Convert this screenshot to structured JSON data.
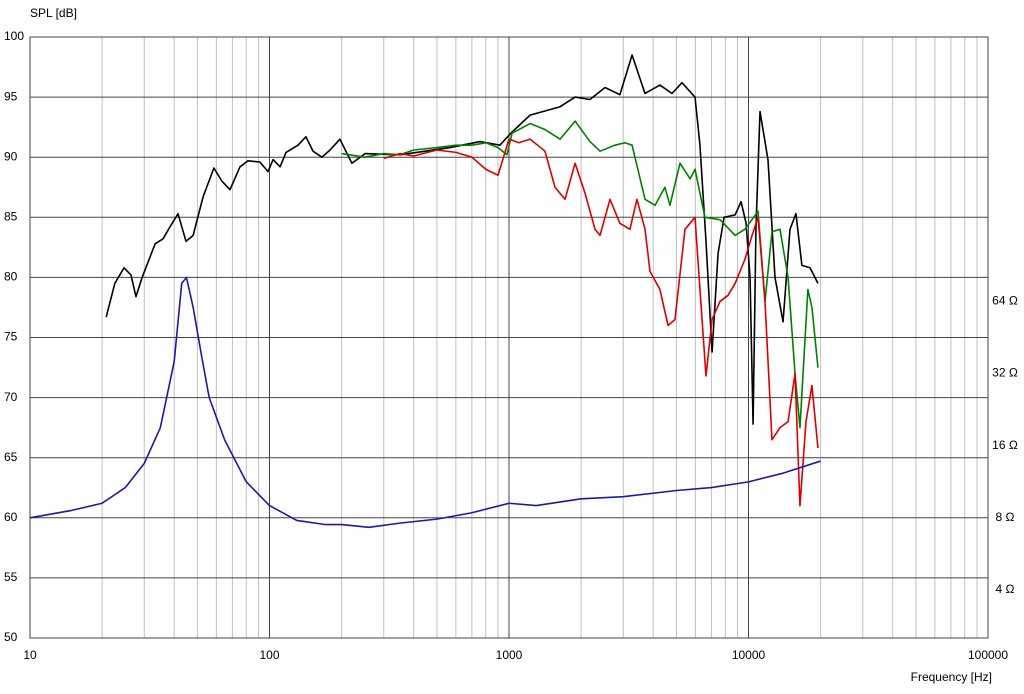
{
  "chart_data": {
    "type": "line",
    "title": "SPL [dB]",
    "x_label": "Frequency [Hz]",
    "xscale": "log",
    "xlim": [
      10,
      100000
    ],
    "xticks": [
      10,
      100,
      1000,
      10000,
      100000
    ],
    "ylim": [
      50,
      100
    ],
    "yticks": [
      50,
      55,
      60,
      65,
      70,
      75,
      80,
      85,
      90,
      95,
      100
    ],
    "y2scale": "log",
    "y2lim": [
      2.52,
      812.7
    ],
    "y2ticks": [
      {
        "value": 4,
        "label": "4 Ω"
      },
      {
        "value": 8,
        "label": "8 Ω"
      },
      {
        "value": 16,
        "label": "16 Ω"
      },
      {
        "value": 32,
        "label": "32 Ω"
      },
      {
        "value": 64,
        "label": "64 Ω"
      }
    ],
    "grid": true,
    "series": [
      {
        "color": "#000000",
        "x": [
          20.8,
          22.6,
          24.7,
          26.4,
          27.7,
          29.4,
          33.3,
          35.9,
          38.4,
          41.5,
          44.8,
          48.0,
          52.8,
          58.6,
          63.3,
          68.4,
          75.3,
          81.3,
          91.2,
          98.6,
          103.5,
          110.7,
          117.2,
          131.5,
          141.9,
          152,
          165.6,
          179,
          196.8,
          220.8,
          250.6,
          350.8,
          567.5,
          756.8,
          916.2,
          1030,
          1225,
          1635,
          1888,
          2178,
          2518,
          2904,
          3265,
          3698,
          4267,
          4793,
          5275,
          5980,
          6270,
          6646,
          7045,
          7464,
          7907,
          8790,
          9310,
          9772,
          10150,
          10450,
          10740,
          11170,
          12060,
          12900,
          13940,
          14900,
          15780,
          16710,
          18060,
          19500
        ],
        "values": [
          76.7,
          79.5,
          80.8,
          80.2,
          78.4,
          80.0,
          82.8,
          83.2,
          84.2,
          85.3,
          83.0,
          83.5,
          86.7,
          89.1,
          88.0,
          87.3,
          89.2,
          89.7,
          89.6,
          88.8,
          89.8,
          89.2,
          90.4,
          91.0,
          91.7,
          90.5,
          90.0,
          90.6,
          91.5,
          89.5,
          90.3,
          90.2,
          90.8,
          91.3,
          91.0,
          92.1,
          93.5,
          94.2,
          95.0,
          94.8,
          95.8,
          95.2,
          98.5,
          95.3,
          96.0,
          95.3,
          96.2,
          95.0,
          91.0,
          83.0,
          73.8,
          82.0,
          85.0,
          85.2,
          86.3,
          84.5,
          80.0,
          67.8,
          84.0,
          93.8,
          89.8,
          80.0,
          76.3,
          84.0,
          85.3,
          81.0,
          80.8,
          79.5
        ]
      },
      {
        "color": "#008000",
        "x": [
          200,
          250,
          300,
          350,
          400,
          500,
          600,
          700,
          800,
          900,
          980,
          1030,
          1225,
          1413,
          1635,
          1888,
          2178,
          2399,
          2773,
          3048,
          3265,
          3698,
          4074,
          4477,
          4699,
          5176,
          5702,
          5980,
          6577,
          7603,
          8790,
          9661,
          10960,
          11720,
          12530,
          13540,
          14630,
          15640,
          16400,
          17700,
          18400,
          19500
        ],
        "values": [
          90.3,
          90.0,
          90.3,
          90.2,
          90.6,
          90.8,
          91.0,
          91.0,
          91.2,
          90.8,
          90.2,
          92.0,
          92.8,
          92.3,
          91.5,
          93.0,
          91.3,
          90.5,
          91.0,
          91.2,
          91.0,
          86.5,
          86.0,
          87.5,
          86.0,
          89.5,
          88.2,
          89.0,
          85.0,
          84.8,
          83.5,
          84.0,
          85.5,
          78.0,
          83.8,
          84.0,
          80.0,
          72.0,
          67.5,
          79.0,
          77.5,
          72.5
        ]
      },
      {
        "color": "#dd0000",
        "x": [
          300,
          350,
          400,
          500,
          600,
          700,
          800,
          900,
          1000,
          1100,
          1225,
          1413,
          1556,
          1714,
          1888,
          2077,
          2287,
          2399,
          2641,
          2904,
          3199,
          3421,
          3698,
          3879,
          4267,
          4614,
          4932,
          5430,
          5980,
          6270,
          6646,
          7045,
          7603,
          8209,
          8790,
          9661,
          10350,
          10960,
          11720,
          12530,
          13540,
          14630,
          15640,
          16400,
          17380,
          18400,
          19500
        ],
        "values": [
          89.9,
          90.3,
          90.1,
          90.6,
          90.4,
          90.0,
          89.0,
          88.5,
          91.5,
          91.2,
          91.5,
          90.5,
          87.5,
          86.5,
          89.5,
          87.0,
          84.0,
          83.5,
          86.5,
          84.5,
          84.0,
          86.5,
          84.0,
          80.5,
          79.0,
          76.0,
          76.5,
          84.0,
          85.0,
          79.0,
          71.8,
          76.5,
          78.0,
          78.5,
          79.5,
          81.5,
          83.5,
          85.0,
          78.0,
          66.5,
          67.5,
          68.0,
          72.0,
          61.0,
          68.0,
          71.0,
          65.8
        ]
      },
      {
        "color": "#1a1aaa",
        "axis": "y2",
        "x": [
          10,
          15,
          20,
          25,
          30,
          35,
          40,
          43,
          45,
          48,
          52,
          56,
          65,
          80,
          100,
          130,
          170,
          200,
          260,
          350,
          500,
          700,
          1000,
          1300,
          2000,
          3000,
          5000,
          7000,
          10000,
          14000,
          20000
        ],
        "values": [
          8.0,
          8.6,
          9.2,
          10.7,
          13.5,
          19.0,
          35.9,
          76.1,
          80.6,
          60.4,
          38.1,
          25.4,
          16.9,
          11.3,
          9.0,
          7.8,
          7.5,
          7.5,
          7.3,
          7.6,
          7.9,
          8.4,
          9.2,
          9.0,
          9.6,
          9.8,
          10.4,
          10.7,
          11.3,
          12.3,
          13.8
        ]
      }
    ]
  }
}
